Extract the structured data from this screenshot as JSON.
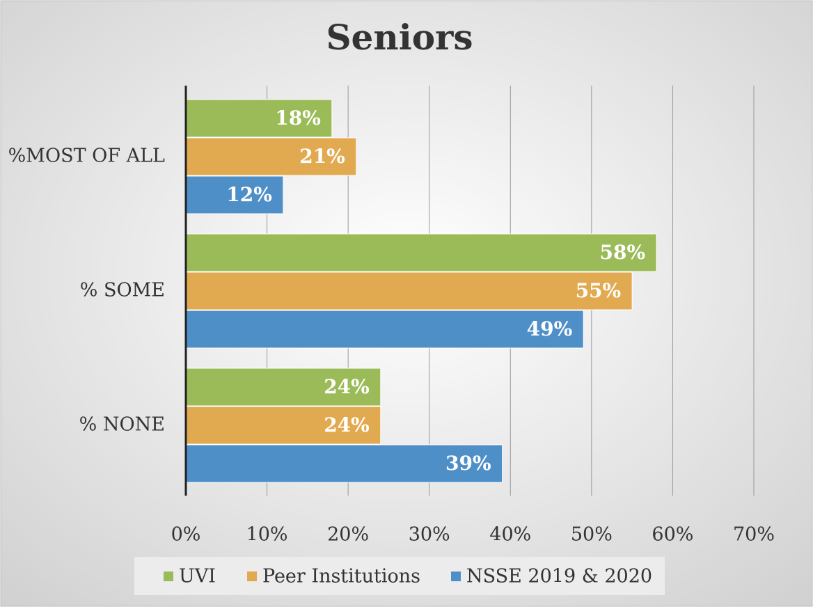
{
  "chart_data": {
    "type": "hbar",
    "title": "Seniors",
    "categories": [
      "%MOST OF ALL",
      "% SOME",
      "% NONE"
    ],
    "series": [
      {
        "name": "UVI",
        "color": "#9bbb59",
        "values": [
          18,
          58,
          24
        ],
        "value_labels": [
          "18%",
          "58%",
          "24%"
        ]
      },
      {
        "name": "Peer Institutions",
        "color": "#e2aa50",
        "values": [
          21,
          55,
          24
        ],
        "value_labels": [
          "21%",
          "55%",
          "24%"
        ]
      },
      {
        "name": "NSSE 2019 & 2020",
        "color": "#4f8fc8",
        "values": [
          12,
          49,
          39
        ],
        "value_labels": [
          "12%",
          "49%",
          "39%"
        ]
      }
    ],
    "xlim": [
      0,
      70
    ],
    "xticks": [
      {
        "value": 0,
        "label": "0%"
      },
      {
        "value": 10,
        "label": "10%"
      },
      {
        "value": 20,
        "label": "20%"
      },
      {
        "value": 30,
        "label": "30%"
      },
      {
        "value": 40,
        "label": "40%"
      },
      {
        "value": 50,
        "label": "50%"
      },
      {
        "value": 60,
        "label": "60%"
      },
      {
        "value": 70,
        "label": "70%"
      }
    ],
    "grid": true,
    "legend": "bottom"
  }
}
